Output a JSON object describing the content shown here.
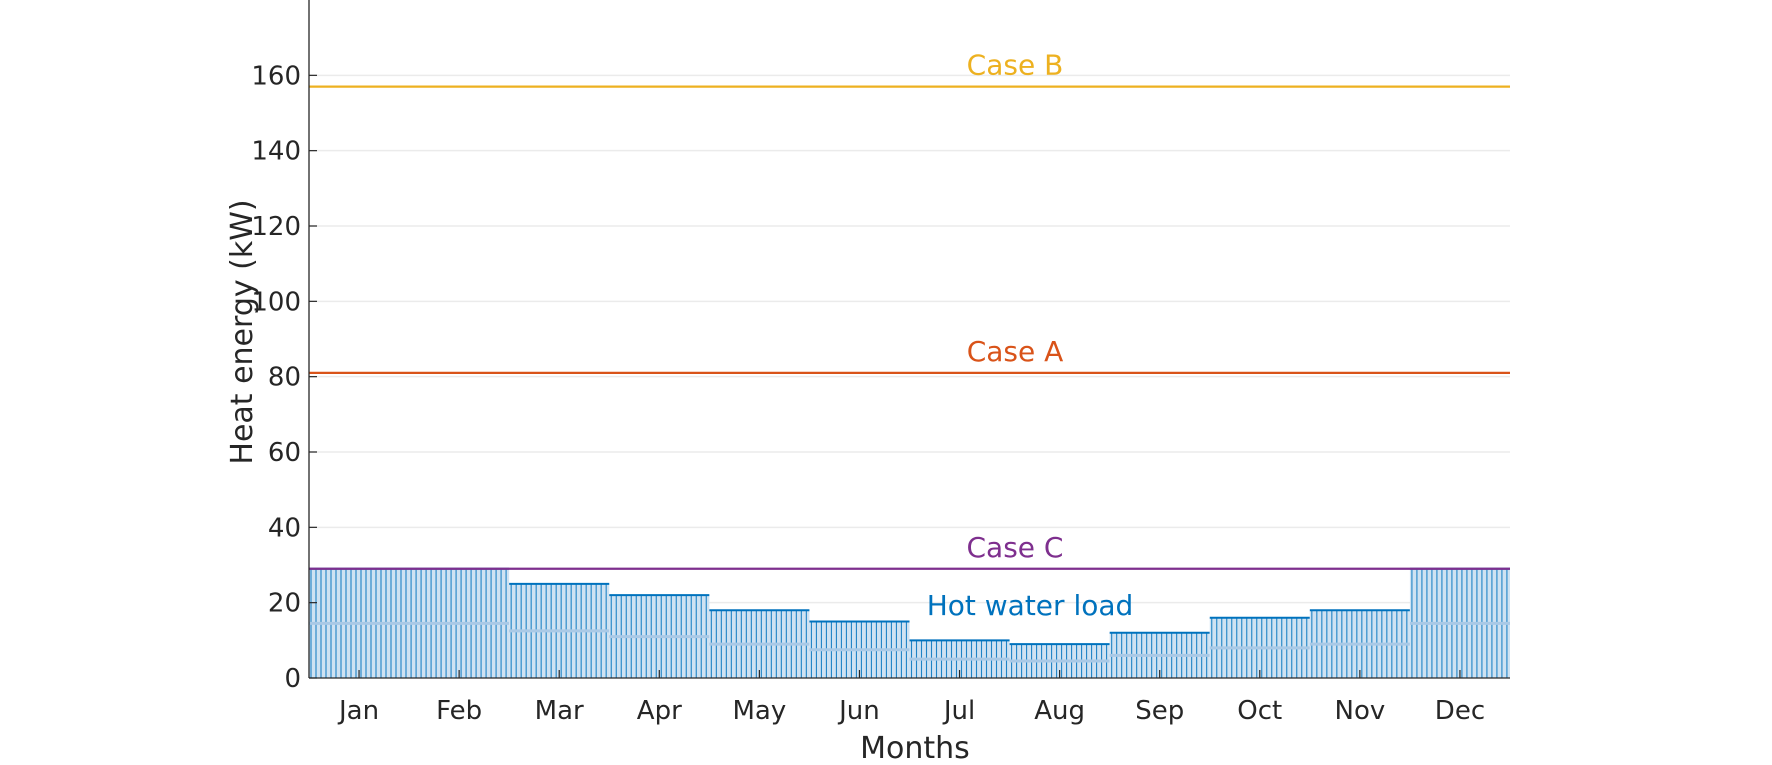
{
  "chart_data": {
    "type": "bar",
    "xlabel": "Months",
    "ylabel": "Heat energy (kW)",
    "ylim": [
      0,
      180
    ],
    "yticks": [
      "0",
      "20",
      "40",
      "60",
      "80",
      "100",
      "120",
      "140",
      "160"
    ],
    "grid": "horizontal",
    "categories": [
      "Jan",
      "Feb",
      "Mar",
      "Apr",
      "May",
      "Jun",
      "Jul",
      "Aug",
      "Sep",
      "Oct",
      "Nov",
      "Dec"
    ],
    "series": [
      {
        "name": "Hot water load",
        "color": "#0072BD",
        "values": [
          29,
          29,
          25,
          22,
          18,
          15,
          10,
          9,
          12,
          16,
          18,
          29
        ]
      }
    ],
    "reference_lines": [
      {
        "name": "Case B",
        "value": 157,
        "color": "#EDB120"
      },
      {
        "name": "Case A",
        "value": 81,
        "color": "#D95319"
      },
      {
        "name": "Case C",
        "value": 29,
        "color": "#7E2F8E"
      }
    ]
  }
}
